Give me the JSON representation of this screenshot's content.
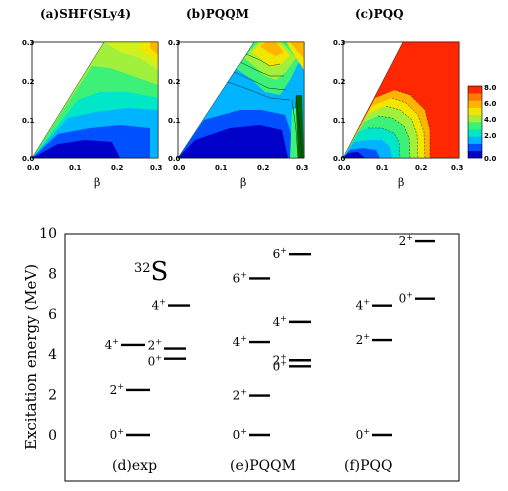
{
  "contour_panels": [
    {
      "title": "(a)SHF(SLy4)",
      "xlabel": "β",
      "ylabel": "",
      "xticks": [
        "0.0",
        "0.1",
        "0.2",
        "0.3"
      ],
      "yticks": [
        "0.0",
        "0.1",
        "0.2",
        "0.3"
      ],
      "xlim": [
        0,
        0.3
      ],
      "ylim": [
        0,
        0.3
      ]
    },
    {
      "title": "(b)PQQM",
      "xlabel": "β",
      "ylabel": "",
      "xticks": [
        "0.0",
        "0.1",
        "0.2",
        "0.3"
      ],
      "yticks": [
        "0.0",
        "0.1",
        "0.2",
        "0.3"
      ],
      "xlim": [
        0,
        0.3
      ],
      "ylim": [
        0,
        0.3
      ]
    },
    {
      "title": "(c)PQQ",
      "xlabel": "β",
      "ylabel": "",
      "xticks": [
        "0.0",
        "0.1",
        "0.2",
        "0.3"
      ],
      "yticks": [
        "0.0",
        "0.1",
        "0.2",
        "0.3"
      ],
      "xlim": [
        0,
        0.3
      ],
      "ylim": [
        0,
        0.3
      ]
    }
  ],
  "colorbar": {
    "ticks": [
      "8.0",
      "6.0",
      "4.0",
      "2.0",
      "0.0"
    ],
    "range": [
      0,
      8
    ],
    "colors": [
      "#0000c8",
      "#0050ff",
      "#00b4ff",
      "#00e6c8",
      "#3cf078",
      "#a0f03c",
      "#f0e600",
      "#ffb400",
      "#ff7800",
      "#ff2800"
    ]
  },
  "chart_data": {
    "type": "table",
    "title": "",
    "nucleus": {
      "mass": "32",
      "symbol": "S"
    },
    "ylabel": "Excitation energy (MeV)",
    "ylim": [
      -1,
      11
    ],
    "yticks": [
      "0",
      "2",
      "4",
      "6",
      "8",
      "10"
    ],
    "columns": [
      {
        "label": "(d)exp",
        "levels": [
          {
            "j": "0",
            "p": "+",
            "energy": 0.0
          },
          {
            "j": "2",
            "p": "+",
            "energy": 2.23
          },
          {
            "j": "4",
            "p": "+",
            "energy": 4.46
          },
          {
            "j": "2",
            "p": "+",
            "energy": 4.28
          },
          {
            "j": "0",
            "p": "+",
            "energy": 3.78
          },
          {
            "j": "4",
            "p": "+",
            "energy": 6.41
          }
        ]
      },
      {
        "label": "(e)PQQM",
        "levels": [
          {
            "j": "0",
            "p": "+",
            "energy": 0.0
          },
          {
            "j": "2",
            "p": "+",
            "energy": 1.95
          },
          {
            "j": "4",
            "p": "+",
            "energy": 4.6
          },
          {
            "j": "6",
            "p": "+",
            "energy": 7.75
          },
          {
            "j": "2",
            "p": "+",
            "energy": 3.7
          },
          {
            "j": "0",
            "p": "+",
            "energy": 3.4
          },
          {
            "j": "4",
            "p": "+",
            "energy": 5.6
          },
          {
            "j": "6",
            "p": "+",
            "energy": 8.95
          }
        ]
      },
      {
        "label": "(f)PQQ",
        "levels": [
          {
            "j": "0",
            "p": "+",
            "energy": 0.0
          },
          {
            "j": "2",
            "p": "+",
            "energy": 4.7
          },
          {
            "j": "4",
            "p": "+",
            "energy": 6.4
          },
          {
            "j": "0",
            "p": "+",
            "energy": 6.75
          },
          {
            "j": "2",
            "p": "+",
            "energy": 9.6
          }
        ]
      }
    ]
  }
}
